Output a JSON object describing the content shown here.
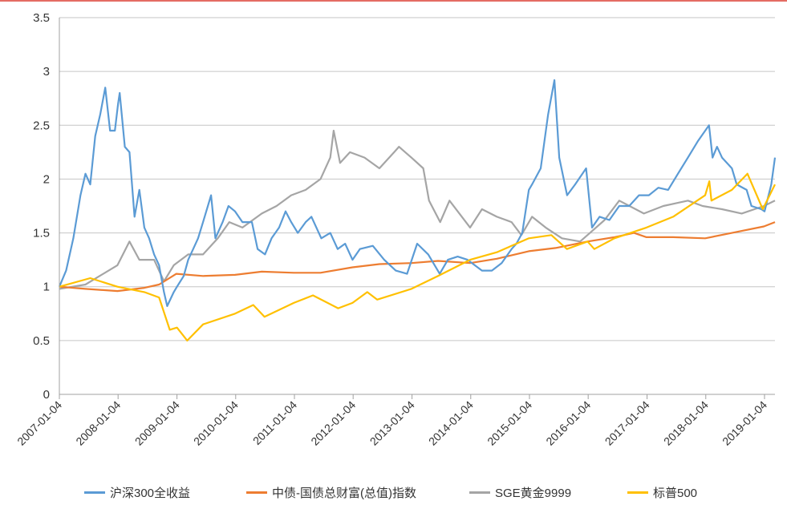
{
  "chart_data": {
    "type": "line",
    "title": "",
    "xlabel": "",
    "ylabel": "",
    "ylim": [
      0,
      3.5
    ],
    "yticks": [
      "0",
      "0.5",
      "1",
      "1.5",
      "2",
      "2.5",
      "3",
      "3.5"
    ],
    "xticks": [
      "2007-01-04",
      "2008-01-04",
      "2009-01-04",
      "2010-01-04",
      "2011-01-04",
      "2012-01-04",
      "2013-01-04",
      "2014-01-04",
      "2015-01-04",
      "2016-01-04",
      "2017-01-04",
      "2018-01-04",
      "2019-01-04"
    ],
    "grid": true,
    "legend_position": "bottom",
    "series": [
      {
        "name": "沪深300全收益",
        "color": "#5b9bd5",
        "points": [
          [
            "2007-01-04",
            1.0
          ],
          [
            "2007-02-15",
            1.15
          ],
          [
            "2007-04-01",
            1.45
          ],
          [
            "2007-05-15",
            1.85
          ],
          [
            "2007-06-15",
            2.05
          ],
          [
            "2007-07-15",
            1.95
          ],
          [
            "2007-08-15",
            2.4
          ],
          [
            "2007-09-15",
            2.6
          ],
          [
            "2007-10-16",
            2.85
          ],
          [
            "2007-11-15",
            2.45
          ],
          [
            "2007-12-15",
            2.45
          ],
          [
            "2008-01-04",
            2.7
          ],
          [
            "2008-01-14",
            2.8
          ],
          [
            "2008-02-15",
            2.3
          ],
          [
            "2008-03-15",
            2.25
          ],
          [
            "2008-04-15",
            1.65
          ],
          [
            "2008-05-15",
            1.9
          ],
          [
            "2008-06-15",
            1.55
          ],
          [
            "2008-07-15",
            1.45
          ],
          [
            "2008-08-15",
            1.3
          ],
          [
            "2008-09-15",
            1.2
          ],
          [
            "2008-10-15",
            0.95
          ],
          [
            "2008-11-04",
            0.82
          ],
          [
            "2008-12-15",
            0.95
          ],
          [
            "2009-01-04",
            1.0
          ],
          [
            "2009-02-15",
            1.1
          ],
          [
            "2009-03-15",
            1.25
          ],
          [
            "2009-04-15",
            1.35
          ],
          [
            "2009-05-15",
            1.45
          ],
          [
            "2009-06-15",
            1.6
          ],
          [
            "2009-08-04",
            1.85
          ],
          [
            "2009-08-31",
            1.45
          ],
          [
            "2009-10-15",
            1.6
          ],
          [
            "2009-11-20",
            1.75
          ],
          [
            "2009-12-31",
            1.7
          ],
          [
            "2010-02-15",
            1.6
          ],
          [
            "2010-04-15",
            1.6
          ],
          [
            "2010-05-20",
            1.35
          ],
          [
            "2010-07-05",
            1.3
          ],
          [
            "2010-08-15",
            1.45
          ],
          [
            "2010-10-01",
            1.55
          ],
          [
            "2010-11-10",
            1.7
          ],
          [
            "2010-12-15",
            1.6
          ],
          [
            "2011-01-25",
            1.5
          ],
          [
            "2011-03-15",
            1.6
          ],
          [
            "2011-04-20",
            1.65
          ],
          [
            "2011-06-20",
            1.45
          ],
          [
            "2011-08-15",
            1.5
          ],
          [
            "2011-09-30",
            1.35
          ],
          [
            "2011-11-15",
            1.4
          ],
          [
            "2011-12-31",
            1.25
          ],
          [
            "2012-02-15",
            1.35
          ],
          [
            "2012-05-05",
            1.38
          ],
          [
            "2012-07-15",
            1.25
          ],
          [
            "2012-09-25",
            1.15
          ],
          [
            "2012-12-04",
            1.12
          ],
          [
            "2013-02-05",
            1.4
          ],
          [
            "2013-04-15",
            1.3
          ],
          [
            "2013-06-25",
            1.12
          ],
          [
            "2013-08-15",
            1.25
          ],
          [
            "2013-10-15",
            1.28
          ],
          [
            "2013-12-15",
            1.25
          ],
          [
            "2014-03-15",
            1.15
          ],
          [
            "2014-05-15",
            1.15
          ],
          [
            "2014-07-15",
            1.22
          ],
          [
            "2014-09-15",
            1.35
          ],
          [
            "2014-10-15",
            1.4
          ],
          [
            "2014-11-20",
            1.5
          ],
          [
            "2014-12-31",
            1.9
          ],
          [
            "2015-01-20",
            1.95
          ],
          [
            "2015-03-15",
            2.1
          ],
          [
            "2015-04-30",
            2.6
          ],
          [
            "2015-06-08",
            2.92
          ],
          [
            "2015-07-08",
            2.2
          ],
          [
            "2015-08-26",
            1.85
          ],
          [
            "2015-10-15",
            1.95
          ],
          [
            "2015-12-22",
            2.1
          ],
          [
            "2016-01-28",
            1.55
          ],
          [
            "2016-03-15",
            1.65
          ],
          [
            "2016-05-15",
            1.62
          ],
          [
            "2016-07-15",
            1.75
          ],
          [
            "2016-09-15",
            1.75
          ],
          [
            "2016-11-15",
            1.85
          ],
          [
            "2017-01-15",
            1.85
          ],
          [
            "2017-03-15",
            1.92
          ],
          [
            "2017-05-15",
            1.9
          ],
          [
            "2017-07-15",
            2.05
          ],
          [
            "2017-09-15",
            2.2
          ],
          [
            "2017-11-15",
            2.35
          ],
          [
            "2018-01-24",
            2.5
          ],
          [
            "2018-02-15",
            2.2
          ],
          [
            "2018-03-15",
            2.3
          ],
          [
            "2018-04-15",
            2.2
          ],
          [
            "2018-06-15",
            2.1
          ],
          [
            "2018-07-15",
            1.95
          ],
          [
            "2018-09-15",
            1.9
          ],
          [
            "2018-10-15",
            1.75
          ],
          [
            "2018-12-15",
            1.72
          ],
          [
            "2019-01-04",
            1.7
          ],
          [
            "2019-02-15",
            1.95
          ],
          [
            "2019-03-10",
            2.2
          ]
        ]
      },
      {
        "name": "中债-国债总财富(总值)指数",
        "color": "#ed7d31",
        "points": [
          [
            "2007-01-04",
            1.0
          ],
          [
            "2007-06-15",
            0.98
          ],
          [
            "2007-12-31",
            0.96
          ],
          [
            "2008-06-15",
            0.99
          ],
          [
            "2008-09-15",
            1.02
          ],
          [
            "2008-12-31",
            1.12
          ],
          [
            "2009-06-15",
            1.1
          ],
          [
            "2009-12-31",
            1.11
          ],
          [
            "2010-06-15",
            1.14
          ],
          [
            "2010-12-31",
            1.13
          ],
          [
            "2011-06-15",
            1.13
          ],
          [
            "2011-12-31",
            1.18
          ],
          [
            "2012-06-15",
            1.21
          ],
          [
            "2012-12-31",
            1.22
          ],
          [
            "2013-06-15",
            1.24
          ],
          [
            "2013-12-31",
            1.22
          ],
          [
            "2014-06-15",
            1.26
          ],
          [
            "2014-12-31",
            1.33
          ],
          [
            "2015-06-15",
            1.36
          ],
          [
            "2015-12-31",
            1.42
          ],
          [
            "2016-06-15",
            1.46
          ],
          [
            "2016-10-15",
            1.5
          ],
          [
            "2016-12-31",
            1.46
          ],
          [
            "2017-06-15",
            1.46
          ],
          [
            "2017-12-31",
            1.45
          ],
          [
            "2018-06-15",
            1.5
          ],
          [
            "2018-12-31",
            1.56
          ],
          [
            "2019-03-10",
            1.6
          ]
        ]
      },
      {
        "name": "SGE黄金9999",
        "color": "#a5a5a5",
        "points": [
          [
            "2007-01-04",
            0.98
          ],
          [
            "2007-06-15",
            1.02
          ],
          [
            "2007-12-31",
            1.2
          ],
          [
            "2008-03-15",
            1.42
          ],
          [
            "2008-05-15",
            1.25
          ],
          [
            "2008-08-15",
            1.25
          ],
          [
            "2008-10-15",
            1.05
          ],
          [
            "2008-12-15",
            1.2
          ],
          [
            "2009-03-15",
            1.3
          ],
          [
            "2009-06-15",
            1.3
          ],
          [
            "2009-09-15",
            1.45
          ],
          [
            "2009-11-25",
            1.6
          ],
          [
            "2010-02-15",
            1.55
          ],
          [
            "2010-06-15",
            1.68
          ],
          [
            "2010-09-15",
            1.75
          ],
          [
            "2010-12-15",
            1.85
          ],
          [
            "2011-03-15",
            1.9
          ],
          [
            "2011-06-15",
            2.0
          ],
          [
            "2011-08-15",
            2.2
          ],
          [
            "2011-09-05",
            2.45
          ],
          [
            "2011-10-15",
            2.15
          ],
          [
            "2011-12-15",
            2.25
          ],
          [
            "2012-03-15",
            2.2
          ],
          [
            "2012-06-15",
            2.1
          ],
          [
            "2012-09-15",
            2.25
          ],
          [
            "2012-10-15",
            2.3
          ],
          [
            "2012-12-31",
            2.2
          ],
          [
            "2013-03-15",
            2.1
          ],
          [
            "2013-04-20",
            1.8
          ],
          [
            "2013-06-28",
            1.6
          ],
          [
            "2013-08-25",
            1.8
          ],
          [
            "2013-12-31",
            1.55
          ],
          [
            "2014-03-15",
            1.72
          ],
          [
            "2014-06-15",
            1.65
          ],
          [
            "2014-09-15",
            1.6
          ],
          [
            "2014-11-15",
            1.48
          ],
          [
            "2015-01-20",
            1.65
          ],
          [
            "2015-04-15",
            1.55
          ],
          [
            "2015-07-25",
            1.45
          ],
          [
            "2015-11-15",
            1.42
          ],
          [
            "2016-01-15",
            1.5
          ],
          [
            "2016-04-15",
            1.62
          ],
          [
            "2016-07-15",
            1.8
          ],
          [
            "2016-12-15",
            1.68
          ],
          [
            "2017-04-15",
            1.75
          ],
          [
            "2017-09-15",
            1.8
          ],
          [
            "2017-12-15",
            1.75
          ],
          [
            "2018-04-15",
            1.72
          ],
          [
            "2018-08-15",
            1.68
          ],
          [
            "2018-12-31",
            1.75
          ],
          [
            "2019-03-10",
            1.8
          ]
        ]
      },
      {
        "name": "标普500",
        "color": "#ffc000",
        "points": [
          [
            "2007-01-04",
            1.0
          ],
          [
            "2007-07-15",
            1.08
          ],
          [
            "2007-12-31",
            1.0
          ],
          [
            "2008-06-15",
            0.95
          ],
          [
            "2008-09-15",
            0.9
          ],
          [
            "2008-11-20",
            0.6
          ],
          [
            "2009-01-04",
            0.62
          ],
          [
            "2009-03-09",
            0.5
          ],
          [
            "2009-06-15",
            0.65
          ],
          [
            "2009-12-31",
            0.75
          ],
          [
            "2010-04-23",
            0.83
          ],
          [
            "2010-07-02",
            0.72
          ],
          [
            "2010-12-31",
            0.85
          ],
          [
            "2011-04-29",
            0.92
          ],
          [
            "2011-10-03",
            0.8
          ],
          [
            "2011-12-31",
            0.85
          ],
          [
            "2012-04-01",
            0.95
          ],
          [
            "2012-06-01",
            0.88
          ],
          [
            "2012-12-31",
            0.98
          ],
          [
            "2013-06-15",
            1.1
          ],
          [
            "2013-12-31",
            1.25
          ],
          [
            "2014-06-15",
            1.32
          ],
          [
            "2014-12-31",
            1.45
          ],
          [
            "2015-05-20",
            1.48
          ],
          [
            "2015-08-25",
            1.35
          ],
          [
            "2015-12-31",
            1.42
          ],
          [
            "2016-02-11",
            1.35
          ],
          [
            "2016-06-15",
            1.45
          ],
          [
            "2016-12-31",
            1.55
          ],
          [
            "2017-06-15",
            1.65
          ],
          [
            "2017-12-31",
            1.85
          ],
          [
            "2018-01-26",
            1.98
          ],
          [
            "2018-02-08",
            1.8
          ],
          [
            "2018-06-15",
            1.9
          ],
          [
            "2018-09-20",
            2.05
          ],
          [
            "2018-12-24",
            1.72
          ],
          [
            "2019-03-10",
            1.95
          ]
        ]
      }
    ]
  }
}
